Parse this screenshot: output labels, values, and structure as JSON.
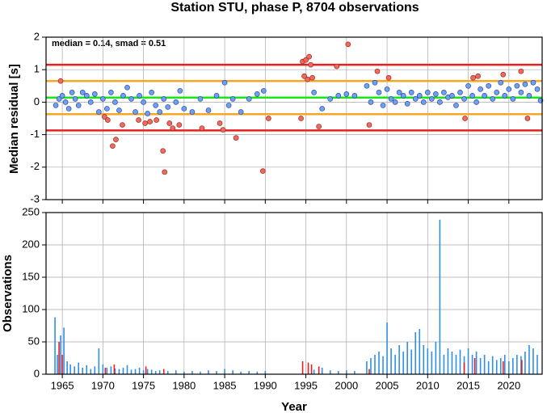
{
  "chart_data": [
    {
      "type": "scatter",
      "title": "Station STU, phase P, 8704 observations",
      "ylabel": "Median residual [s]",
      "annotation": "median = 0.14, smad = 0.51",
      "xlim": [
        1963,
        2024.1
      ],
      "xticks": [
        1965,
        1970,
        1975,
        1980,
        1985,
        1990,
        1995,
        2000,
        2005,
        2010,
        2015,
        2020
      ],
      "show_xtick_labels": false,
      "ylim": [
        -3,
        2
      ],
      "yticks": [
        -3,
        -2,
        -1,
        0,
        1,
        2
      ],
      "grid": true,
      "hlines": [
        {
          "value": 1.15,
          "color": "#e8201e"
        },
        {
          "value": -0.87,
          "color": "#e8201e"
        },
        {
          "value": 0.65,
          "color": "#f5a623"
        },
        {
          "value": -0.37,
          "color": "#f5a623"
        },
        {
          "value": 0.14,
          "color": "#19e619"
        }
      ],
      "series": [
        {
          "color": "#6ea0f5",
          "edge": "#2a4a9a",
          "x": [
            1964.2,
            1964.6,
            1965,
            1965.4,
            1965.8,
            1966.2,
            1966.6,
            1967,
            1967.5,
            1968,
            1968.5,
            1969,
            1969.5,
            1970,
            1970.5,
            1971,
            1971.5,
            1972,
            1972.5,
            1973,
            1973.5,
            1974,
            1974.5,
            1975,
            1975.5,
            1976,
            1976.5,
            1977,
            1977.5,
            1978,
            1979,
            1979.5,
            1980,
            1981,
            1982,
            1983,
            1984,
            1985,
            1985.5,
            1986,
            1987,
            1988,
            1989,
            1989.8,
            1996,
            1997,
            1998,
            1999,
            2000,
            2001,
            2002.5,
            2003,
            2003.5,
            2004,
            2004.5,
            2005,
            2005.5,
            2006,
            2006.5,
            2007,
            2007.5,
            2008,
            2008.5,
            2009,
            2009.5,
            2010,
            2010.5,
            2011,
            2011.5,
            2012,
            2012.5,
            2013,
            2013.5,
            2014,
            2014.5,
            2015,
            2015.5,
            2016,
            2016.5,
            2017,
            2017.5,
            2018,
            2018.5,
            2019,
            2019.5,
            2020,
            2020.5,
            2021,
            2021.5,
            2022,
            2022.5,
            2023,
            2023.5,
            2023.9
          ],
          "values": [
            -0.1,
            0.1,
            0.2,
            0,
            -0.2,
            0.3,
            0.1,
            -0.1,
            0.3,
            0.2,
            0,
            0.25,
            -0.3,
            0.1,
            -0.2,
            0.3,
            0,
            -0.25,
            0.2,
            0.45,
            0.1,
            -0.3,
            0.2,
            0,
            -0.35,
            0.3,
            -0.1,
            -0.3,
            0.1,
            -0.15,
            0,
            0.35,
            -0.2,
            -0.3,
            0.1,
            -0.25,
            0.2,
            0.6,
            -0.1,
            0.1,
            -0.3,
            0.1,
            0.25,
            0.35,
            0.3,
            -0.2,
            0.1,
            0.2,
            0.25,
            0.2,
            0.5,
            0,
            0.6,
            0.3,
            -0.1,
            0.4,
            0.1,
            0,
            0.3,
            0.2,
            -0.05,
            0.3,
            0.1,
            0.2,
            0,
            0.3,
            0.1,
            0.25,
            0,
            0.3,
            0.15,
            0.2,
            -0.1,
            0.3,
            0.1,
            0.5,
            0.2,
            0,
            0.4,
            0.2,
            0.5,
            0.1,
            0.3,
            0.6,
            0.2,
            0.4,
            0.1,
            0.5,
            0.3,
            0.55,
            0.2,
            0.6,
            0.4,
            0.05
          ]
        },
        {
          "color": "#f26a5e",
          "edge": "#9a2a22",
          "x": [
            1964.8,
            1970.2,
            1970.6,
            1971.2,
            1971.6,
            1972.4,
            1974.4,
            1975.2,
            1975.8,
            1976.6,
            1977.4,
            1977.6,
            1978.2,
            1978.6,
            1979.4,
            1982.2,
            1984.4,
            1984.8,
            1986.4,
            1989.7,
            1990.4,
            1994.4,
            1994.6,
            1994.8,
            1995,
            1995.2,
            1995.4,
            1995.6,
            1995.8,
            1996.6,
            1998.8,
            2000.2,
            2002.8,
            2003.8,
            2005.2,
            2014.6,
            2015.6,
            2016.2,
            2019.3,
            2021.5,
            2022.3
          ],
          "values": [
            0.65,
            -0.45,
            -0.55,
            -1.35,
            -1.15,
            -0.7,
            -0.55,
            -0.65,
            -0.6,
            -0.55,
            -1.5,
            -2.15,
            -0.65,
            -0.8,
            -0.7,
            -0.8,
            -0.65,
            -0.85,
            -1.1,
            -2.12,
            -0.5,
            -0.5,
            1.25,
            0.8,
            1.3,
            0.7,
            1.4,
            1.15,
            0.75,
            -0.75,
            1.1,
            1.78,
            -0.7,
            0.95,
            0.75,
            -0.5,
            0.75,
            0.8,
            0.85,
            0.95,
            -0.5
          ]
        }
      ]
    },
    {
      "type": "bar",
      "ylabel": "Observations",
      "xlabel": "Year",
      "xlim": [
        1963,
        2024.1
      ],
      "xticks": [
        1965,
        1970,
        1975,
        1980,
        1985,
        1990,
        1995,
        2000,
        2005,
        2010,
        2015,
        2020
      ],
      "show_xtick_labels": true,
      "ylim": [
        0,
        250
      ],
      "yticks": [
        0,
        50,
        100,
        150,
        200,
        250
      ],
      "grid": true,
      "series": [
        {
          "color": "#2f8fe8",
          "x": [
            1964.1,
            1964.4,
            1964.8,
            1965.2,
            1965.6,
            1966,
            1966.5,
            1967,
            1967.5,
            1968,
            1968.5,
            1969,
            1969.5,
            1970,
            1970.5,
            1971,
            1971.5,
            1972,
            1972.5,
            1973,
            1973.5,
            1974,
            1974.5,
            1975,
            1975.5,
            1976,
            1976.5,
            1977,
            1978,
            1979,
            1980,
            1981,
            1982,
            1983,
            1984,
            1985,
            1986,
            1987,
            1988,
            1989,
            1990,
            1996,
            1997,
            1998,
            1999,
            2000,
            2001,
            2002.5,
            2003,
            2003.5,
            2004,
            2004.5,
            2005,
            2005.5,
            2006,
            2006.5,
            2007,
            2007.5,
            2008,
            2008.5,
            2009,
            2009.5,
            2010,
            2010.5,
            2011,
            2011.5,
            2012,
            2012.5,
            2013,
            2013.5,
            2014,
            2014.5,
            2015,
            2015.5,
            2016,
            2016.5,
            2017,
            2017.5,
            2018,
            2018.5,
            2019,
            2019.5,
            2020,
            2020.5,
            2021,
            2021.5,
            2022,
            2022.5,
            2023,
            2023.5
          ],
          "values": [
            88,
            30,
            60,
            72,
            20,
            15,
            12,
            18,
            10,
            14,
            8,
            12,
            40,
            15,
            10,
            12,
            9,
            8,
            10,
            14,
            7,
            8,
            10,
            6,
            8,
            7,
            5,
            6,
            5,
            6,
            4,
            5,
            4,
            6,
            5,
            8,
            6,
            4,
            5,
            4,
            5,
            7,
            10,
            6,
            5,
            6,
            5,
            20,
            25,
            30,
            35,
            28,
            80,
            40,
            30,
            45,
            35,
            50,
            38,
            65,
            70,
            45,
            40,
            35,
            50,
            239,
            30,
            40,
            35,
            30,
            38,
            28,
            40,
            30,
            35,
            25,
            30,
            20,
            28,
            22,
            25,
            30,
            20,
            25,
            30,
            28,
            35,
            45,
            40,
            30
          ]
        },
        {
          "color": "#e8201e",
          "x": [
            1964.6,
            1965,
            1970.3,
            1971.4,
            1975.3,
            1977.5,
            1994.6,
            1995.3,
            1995.7,
            1996.6,
            2002.8,
            2014.5,
            2015.8,
            2019.3,
            2021.6
          ],
          "values": [
            50,
            30,
            10,
            15,
            12,
            8,
            20,
            18,
            15,
            12,
            8,
            18,
            25,
            20,
            22
          ]
        }
      ]
    }
  ]
}
